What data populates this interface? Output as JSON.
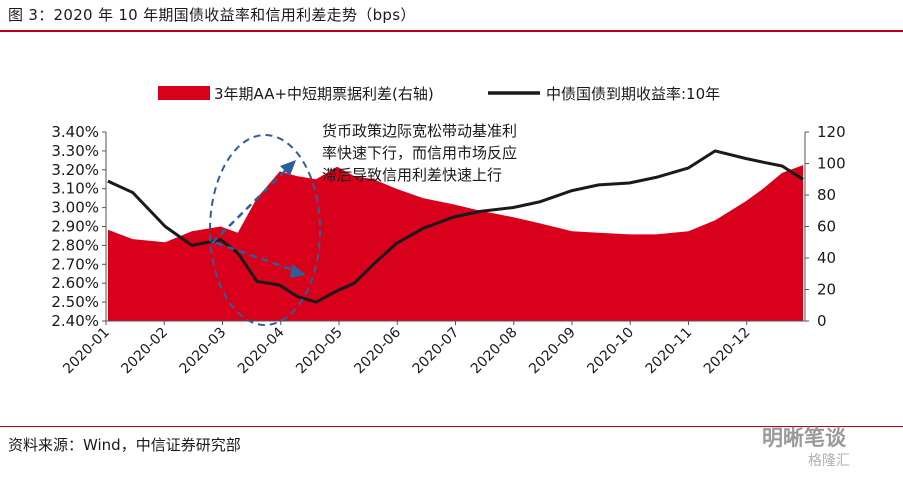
{
  "header": {
    "title": "图 3：2020 年 10 年期国债收益率和信用利差走势（bps）"
  },
  "footer": {
    "source": "资料来源：Wind，中信证券研究部"
  },
  "watermark": {
    "text": "明晰笔谈",
    "sub": "格隆汇"
  },
  "colors": {
    "area": "#d9001b",
    "line": "#1a1a1a",
    "rule": "#b8001f",
    "annotation": "#2f5f9a"
  },
  "chart_data": {
    "type": "area",
    "legend": [
      "3年期AA+中短期票据利差(右轴)",
      "中债国债到期收益率:10年"
    ],
    "legend_position": "top",
    "annotation": [
      "货币政策边际宽松带动基准利",
      "率快速下行，而信用市场反应",
      "滞后导致信用利差快速上行"
    ],
    "x_tick_labels": [
      "2020-01",
      "2020-02",
      "2020-03",
      "2020-04",
      "2020-05",
      "2020-06",
      "2020-07",
      "2020-08",
      "2020-09",
      "2020-10",
      "2020-11",
      "2020-12"
    ],
    "y_left": {
      "ticks": [
        "2.40%",
        "2.50%",
        "2.60%",
        "2.70%",
        "2.80%",
        "2.90%",
        "3.00%",
        "3.10%",
        "3.20%",
        "3.30%",
        "3.40%"
      ],
      "range": [
        2.4,
        3.4
      ],
      "unit": "%"
    },
    "y_right": {
      "ticks": [
        "0",
        "20",
        "40",
        "60",
        "80",
        "100",
        "120"
      ],
      "range": [
        0,
        120
      ]
    },
    "x": [
      "2020-01-02",
      "2020-01-15",
      "2020-02-01",
      "2020-02-15",
      "2020-03-01",
      "2020-03-10",
      "2020-03-20",
      "2020-04-01",
      "2020-04-10",
      "2020-04-20",
      "2020-05-01",
      "2020-05-10",
      "2020-05-20",
      "2020-06-01",
      "2020-06-15",
      "2020-07-01",
      "2020-07-15",
      "2020-08-01",
      "2020-08-15",
      "2020-09-01",
      "2020-09-15",
      "2020-10-01",
      "2020-10-15",
      "2020-11-01",
      "2020-11-15",
      "2020-12-01",
      "2020-12-10",
      "2020-12-20",
      "2020-12-31"
    ],
    "series": [
      {
        "name": "3年期AA+中短期票据利差(右轴)",
        "axis": "right",
        "values": [
          58,
          52,
          50,
          57,
          60,
          56,
          78,
          95,
          92,
          90,
          98,
          92,
          90,
          84,
          78,
          74,
          70,
          66,
          62,
          57,
          56,
          55,
          55,
          57,
          64,
          76,
          84,
          94,
          99
        ]
      },
      {
        "name": "中债国债到期收益率:10年",
        "axis": "left",
        "values": [
          3.14,
          3.08,
          2.9,
          2.8,
          2.83,
          2.76,
          2.61,
          2.59,
          2.53,
          2.5,
          2.56,
          2.6,
          2.7,
          2.81,
          2.89,
          2.95,
          2.98,
          3.0,
          3.03,
          3.09,
          3.12,
          3.13,
          3.16,
          3.21,
          3.3,
          3.26,
          3.24,
          3.22,
          3.15
        ]
      }
    ]
  }
}
